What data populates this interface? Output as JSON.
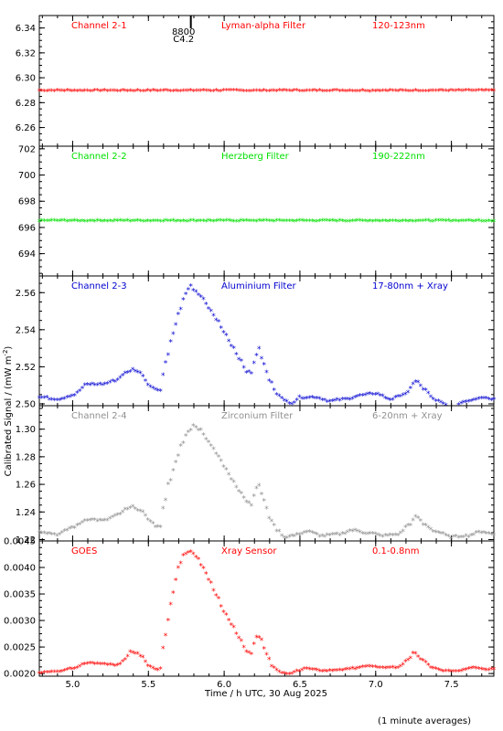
{
  "x_axis": {
    "title": "Time / h UTC, 30 Aug 2025",
    "xlim": [
      4.78,
      7.78
    ],
    "ticks": [
      5.0,
      5.5,
      6.0,
      6.5,
      7.0,
      7.5
    ],
    "tick_labels": [
      "5.0",
      "5.5",
      "6.0",
      "6.5",
      "7.0",
      "7.5"
    ]
  },
  "y_title": "Calibrated Signal / (mW m",
  "y_title_sup": "-2",
  "y_title_end": ")",
  "footer_note": "(1 minute averages)",
  "marker": {
    "x": 5.78,
    "text1": "8800",
    "text2": "C4.2"
  },
  "chart_data": [
    {
      "type": "scatter",
      "channel": "Channel 2-1",
      "filter": "Lyman-alpha Filter",
      "band": "120-123nm",
      "color": "#ff0000",
      "ylim": [
        6.245,
        6.35
      ],
      "ticks": [
        6.26,
        6.28,
        6.3,
        6.32,
        6.34
      ],
      "tick_labels": [
        "6.26",
        "6.28",
        "6.30",
        "6.32",
        "6.34"
      ],
      "profile": "flat",
      "base": 6.289,
      "amp": 0.0005
    },
    {
      "type": "scatter",
      "channel": "Channel 2-2",
      "filter": "Herzberg Filter",
      "band": "190-222nm",
      "color": "#00e000",
      "ylim": [
        692.3,
        702.2
      ],
      "ticks": [
        694,
        696,
        698,
        700,
        702
      ],
      "tick_labels": [
        "694",
        "696",
        "698",
        "700",
        "702"
      ],
      "profile": "flat",
      "base": 696.45,
      "amp": 0.04
    },
    {
      "type": "scatter",
      "channel": "Channel 2-3",
      "filter": "Aluminium Filter",
      "band": "17-80nm + Xray",
      "color": "#0000d0",
      "ylim": [
        2.499,
        2.569
      ],
      "ticks": [
        2.5,
        2.52,
        2.54,
        2.56
      ],
      "tick_labels": [
        "2.50",
        "2.52",
        "2.54",
        "2.56"
      ],
      "profile": "flare",
      "keypoints": [
        [
          4.78,
          2.503
        ],
        [
          4.9,
          2.502
        ],
        [
          5.0,
          2.504
        ],
        [
          5.1,
          2.51
        ],
        [
          5.2,
          2.51
        ],
        [
          5.28,
          2.512
        ],
        [
          5.35,
          2.516
        ],
        [
          5.4,
          2.518
        ],
        [
          5.45,
          2.516
        ],
        [
          5.5,
          2.51
        ],
        [
          5.55,
          2.507
        ],
        [
          5.58,
          2.507
        ],
        [
          5.6,
          2.516
        ],
        [
          5.62,
          2.524
        ],
        [
          5.66,
          2.537
        ],
        [
          5.7,
          2.548
        ],
        [
          5.74,
          2.558
        ],
        [
          5.78,
          2.563
        ],
        [
          5.8,
          2.561
        ],
        [
          5.85,
          2.557
        ],
        [
          5.9,
          2.551
        ],
        [
          5.95,
          2.545
        ],
        [
          6.0,
          2.538
        ],
        [
          6.05,
          2.531
        ],
        [
          6.1,
          2.524
        ],
        [
          6.15,
          2.517
        ],
        [
          6.18,
          2.516
        ],
        [
          6.21,
          2.526
        ],
        [
          6.23,
          2.529
        ],
        [
          6.26,
          2.521
        ],
        [
          6.3,
          2.512
        ],
        [
          6.35,
          2.505
        ],
        [
          6.4,
          2.501
        ],
        [
          6.45,
          2.5
        ],
        [
          6.5,
          2.503
        ],
        [
          6.6,
          2.503
        ],
        [
          6.7,
          2.501
        ],
        [
          6.8,
          2.502
        ],
        [
          6.9,
          2.504
        ],
        [
          7.0,
          2.505
        ],
        [
          7.1,
          2.502
        ],
        [
          7.2,
          2.505
        ],
        [
          7.27,
          2.512
        ],
        [
          7.32,
          2.507
        ],
        [
          7.4,
          2.501
        ],
        [
          7.5,
          2.498
        ],
        [
          7.6,
          2.501
        ],
        [
          7.7,
          2.503
        ],
        [
          7.78,
          2.502
        ]
      ],
      "noise": 0.0005
    },
    {
      "type": "scatter",
      "channel": "Channel 2-4",
      "filter": "Zirconium Filter",
      "band": "6-20nm + Xray",
      "color": "#909090",
      "ylim": [
        1.219,
        1.317
      ],
      "ticks": [
        1.22,
        1.24,
        1.26,
        1.28,
        1.3
      ],
      "tick_labels": [
        "1.22",
        "1.24",
        "1.26",
        "1.28",
        "1.30"
      ],
      "profile": "flare",
      "keypoints": [
        [
          4.78,
          1.225
        ],
        [
          4.9,
          1.223
        ],
        [
          5.0,
          1.228
        ],
        [
          5.1,
          1.234
        ],
        [
          5.2,
          1.233
        ],
        [
          5.3,
          1.237
        ],
        [
          5.35,
          1.241
        ],
        [
          5.4,
          1.243
        ],
        [
          5.45,
          1.24
        ],
        [
          5.5,
          1.234
        ],
        [
          5.55,
          1.229
        ],
        [
          5.58,
          1.228
        ],
        [
          5.6,
          1.244
        ],
        [
          5.64,
          1.262
        ],
        [
          5.68,
          1.275
        ],
        [
          5.72,
          1.288
        ],
        [
          5.76,
          1.297
        ],
        [
          5.8,
          1.302
        ],
        [
          5.84,
          1.299
        ],
        [
          5.88,
          1.293
        ],
        [
          5.92,
          1.287
        ],
        [
          5.96,
          1.28
        ],
        [
          6.0,
          1.272
        ],
        [
          6.05,
          1.263
        ],
        [
          6.1,
          1.255
        ],
        [
          6.15,
          1.247
        ],
        [
          6.18,
          1.245
        ],
        [
          6.21,
          1.256
        ],
        [
          6.23,
          1.259
        ],
        [
          6.26,
          1.248
        ],
        [
          6.3,
          1.235
        ],
        [
          6.35,
          1.226
        ],
        [
          6.4,
          1.221
        ],
        [
          6.45,
          1.222
        ],
        [
          6.55,
          1.225
        ],
        [
          6.65,
          1.222
        ],
        [
          6.75,
          1.223
        ],
        [
          6.85,
          1.226
        ],
        [
          6.95,
          1.224
        ],
        [
          7.05,
          1.222
        ],
        [
          7.15,
          1.223
        ],
        [
          7.22,
          1.23
        ],
        [
          7.27,
          1.236
        ],
        [
          7.32,
          1.23
        ],
        [
          7.4,
          1.225
        ],
        [
          7.5,
          1.221
        ],
        [
          7.6,
          1.222
        ],
        [
          7.7,
          1.225
        ],
        [
          7.78,
          1.223
        ]
      ],
      "noise": 0.0007
    },
    {
      "type": "scatter",
      "channel": "GOES",
      "filter": "Xray Sensor",
      "band": "0.1-0.8nm",
      "color": "#ff0000",
      "ylim": [
        0.00195,
        0.0045
      ],
      "ticks": [
        0.002,
        0.0025,
        0.003,
        0.0035,
        0.004,
        0.0045
      ],
      "tick_labels": [
        "0.0020",
        "0.0025",
        "0.0030",
        "0.0035",
        "0.0040",
        "0.0045"
      ],
      "profile": "flare",
      "keypoints": [
        [
          4.78,
          0.002
        ],
        [
          4.9,
          0.00202
        ],
        [
          5.0,
          0.00208
        ],
        [
          5.1,
          0.00218
        ],
        [
          5.2,
          0.00216
        ],
        [
          5.3,
          0.00214
        ],
        [
          5.35,
          0.00225
        ],
        [
          5.38,
          0.0024
        ],
        [
          5.42,
          0.00237
        ],
        [
          5.46,
          0.0023
        ],
        [
          5.5,
          0.00213
        ],
        [
          5.55,
          0.00205
        ],
        [
          5.58,
          0.00208
        ],
        [
          5.6,
          0.0025
        ],
        [
          5.63,
          0.003
        ],
        [
          5.66,
          0.0035
        ],
        [
          5.7,
          0.004
        ],
        [
          5.74,
          0.00425
        ],
        [
          5.78,
          0.00428
        ],
        [
          5.82,
          0.00418
        ],
        [
          5.86,
          0.00398
        ],
        [
          5.9,
          0.00375
        ],
        [
          5.95,
          0.00345
        ],
        [
          6.0,
          0.00315
        ],
        [
          6.05,
          0.0029
        ],
        [
          6.1,
          0.00265
        ],
        [
          6.15,
          0.0024
        ],
        [
          6.18,
          0.00235
        ],
        [
          6.21,
          0.00268
        ],
        [
          6.24,
          0.00265
        ],
        [
          6.28,
          0.00235
        ],
        [
          6.32,
          0.0021
        ],
        [
          6.38,
          0.00199
        ],
        [
          6.43,
          0.00197
        ],
        [
          6.48,
          0.00203
        ],
        [
          6.55,
          0.00208
        ],
        [
          6.65,
          0.00203
        ],
        [
          6.75,
          0.00205
        ],
        [
          6.85,
          0.00208
        ],
        [
          6.95,
          0.00212
        ],
        [
          7.05,
          0.00209
        ],
        [
          7.15,
          0.0021
        ],
        [
          7.22,
          0.00225
        ],
        [
          7.25,
          0.00238
        ],
        [
          7.3,
          0.00225
        ],
        [
          7.38,
          0.00208
        ],
        [
          7.45,
          0.00203
        ],
        [
          7.55,
          0.00203
        ],
        [
          7.65,
          0.0021
        ],
        [
          7.72,
          0.00205
        ],
        [
          7.78,
          0.00208
        ]
      ],
      "noise": 8e-06
    }
  ]
}
